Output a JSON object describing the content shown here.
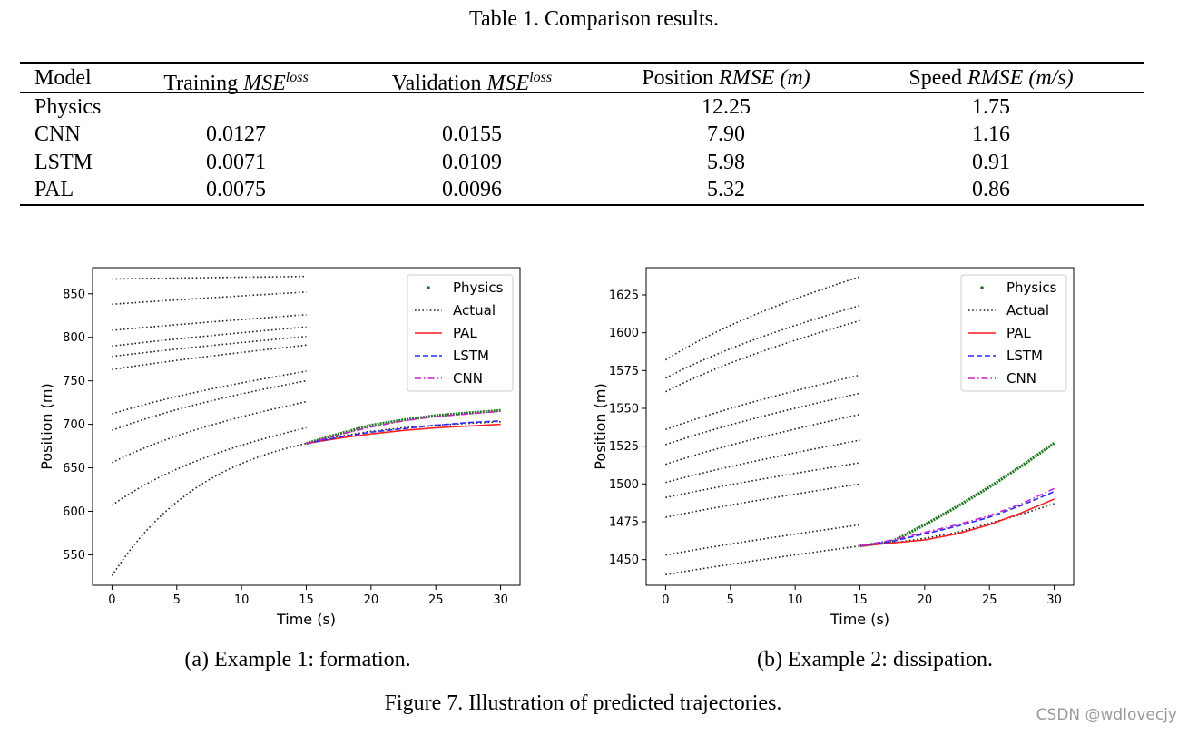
{
  "table": {
    "caption": "Table 1. Comparison results.",
    "headers": [
      {
        "pre": "Model",
        "math": "",
        "sup": "",
        "post": ""
      },
      {
        "pre": "Training ",
        "math": "MSE",
        "sup": "loss",
        "post": ""
      },
      {
        "pre": "Validation ",
        "math": "MSE",
        "sup": "loss",
        "post": ""
      },
      {
        "pre": "Position ",
        "math": "RMSE  (m)",
        "sup": "",
        "post": ""
      },
      {
        "pre": "Speed ",
        "math": "RMSE  (m/s)",
        "sup": "",
        "post": ""
      }
    ],
    "rows": [
      [
        "Physics",
        "",
        "",
        "12.25",
        "1.75"
      ],
      [
        "CNN",
        "0.0127",
        "0.0155",
        "7.90",
        "1.16"
      ],
      [
        "LSTM",
        "0.0071",
        "0.0109",
        "5.98",
        "0.91"
      ],
      [
        "PAL",
        "0.0075",
        "0.0096",
        "5.32",
        "0.86"
      ]
    ]
  },
  "colors": {
    "physics": "#1f7a1f",
    "actual": "#222222",
    "pal": "#ff2020",
    "lstm": "#2a2aff",
    "cnn": "#cc22cc"
  },
  "chart_data": [
    {
      "type": "line",
      "subcaption": "(a) Example 1: formation.",
      "xlabel": "Time (s)",
      "ylabel": "Position (m)",
      "xlim": [
        -1.5,
        31.5
      ],
      "ylim": [
        515,
        880
      ],
      "xticks": [
        0,
        5,
        10,
        15,
        20,
        25,
        30
      ],
      "yticks": [
        550,
        600,
        650,
        700,
        750,
        800,
        850
      ],
      "legend": [
        "Physics",
        "Actual",
        "PAL",
        "LSTM",
        "CNN"
      ],
      "legend_position": "top-right",
      "history": [
        [
          867,
          870
        ],
        [
          838,
          852
        ],
        [
          808,
          826
        ],
        [
          790,
          812
        ],
        [
          778,
          801
        ],
        [
          763,
          791
        ],
        [
          712,
          761
        ],
        [
          693,
          750
        ],
        [
          656,
          726
        ],
        [
          607,
          696
        ],
        [
          526,
          678
        ]
      ],
      "series": [
        {
          "name": "Physics",
          "x": [
            15,
            17.5,
            20,
            22.5,
            25,
            27.5,
            30
          ],
          "y": [
            678,
            689,
            699,
            705,
            710,
            713,
            716
          ]
        },
        {
          "name": "Actual",
          "x": [
            15,
            17.5,
            20,
            22.5,
            25,
            27.5,
            30
          ],
          "y": [
            678,
            686,
            692,
            696,
            699,
            701,
            703
          ]
        },
        {
          "name": "PAL",
          "x": [
            15,
            17.5,
            20,
            22.5,
            25,
            27.5,
            30
          ],
          "y": [
            678,
            684,
            689,
            693,
            696,
            698,
            700
          ]
        },
        {
          "name": "LSTM",
          "x": [
            15,
            17.5,
            20,
            22.5,
            25,
            27.5,
            30
          ],
          "y": [
            678,
            685,
            691,
            695,
            699,
            702,
            704
          ]
        },
        {
          "name": "CNN",
          "x": [
            15,
            17.5,
            20,
            22.5,
            25,
            27.5,
            30
          ],
          "y": [
            678,
            688,
            697,
            704,
            709,
            712,
            715
          ]
        }
      ]
    },
    {
      "type": "line",
      "subcaption": "(b) Example 2: dissipation.",
      "xlabel": "Time (s)",
      "ylabel": "Position (m)",
      "xlim": [
        -1.5,
        31.5
      ],
      "ylim": [
        1433,
        1643
      ],
      "xticks": [
        0,
        5,
        10,
        15,
        20,
        25,
        30
      ],
      "yticks": [
        1450,
        1475,
        1500,
        1525,
        1550,
        1575,
        1600,
        1625
      ],
      "legend": [
        "Physics",
        "Actual",
        "PAL",
        "LSTM",
        "CNN"
      ],
      "legend_position": "top-right",
      "history": [
        [
          1582,
          1637
        ],
        [
          1570,
          1618
        ],
        [
          1561,
          1608
        ],
        [
          1536,
          1572
        ],
        [
          1526,
          1560
        ],
        [
          1513,
          1546
        ],
        [
          1501,
          1529
        ],
        [
          1491,
          1514
        ],
        [
          1478,
          1500
        ],
        [
          1453,
          1473
        ],
        [
          1440,
          1459
        ]
      ],
      "series": [
        {
          "name": "Physics",
          "x": [
            15,
            17.5,
            20,
            22.5,
            25,
            27.5,
            30
          ],
          "y": [
            1459,
            1462,
            1473,
            1485,
            1498,
            1512,
            1527
          ]
        },
        {
          "name": "Actual",
          "x": [
            15,
            17.5,
            20,
            22.5,
            25,
            27.5,
            30
          ],
          "y": [
            1459,
            1461,
            1464,
            1468,
            1474,
            1480,
            1487
          ]
        },
        {
          "name": "PAL",
          "x": [
            15,
            17.5,
            20,
            22.5,
            25,
            27.5,
            30
          ],
          "y": [
            1459,
            1461,
            1463,
            1467,
            1473,
            1481,
            1490
          ]
        },
        {
          "name": "LSTM",
          "x": [
            15,
            17.5,
            20,
            22.5,
            25,
            27.5,
            30
          ],
          "y": [
            1459,
            1462,
            1467,
            1472,
            1478,
            1486,
            1495
          ]
        },
        {
          "name": "CNN",
          "x": [
            15,
            17.5,
            20,
            22.5,
            25,
            27.5,
            30
          ],
          "y": [
            1459,
            1463,
            1468,
            1473,
            1479,
            1487,
            1497
          ]
        }
      ]
    }
  ],
  "figure_caption": "Figure 7. Illustration of predicted trajectories.",
  "watermark": "CSDN @wdlovecjy"
}
